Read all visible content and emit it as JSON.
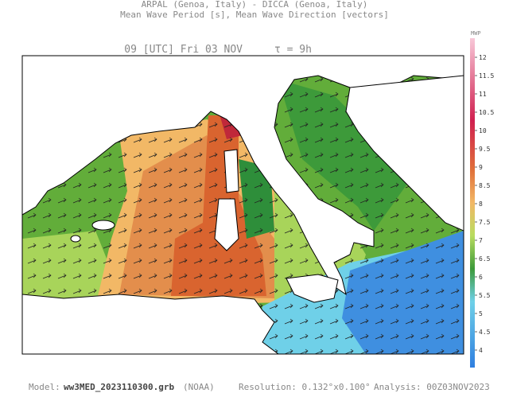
{
  "header": {
    "line1": "ARPAL (Genoa, Italy)  -  DICCA (Genoa, Italy)",
    "line2": "Mean Wave Period [s], Mean Wave Direction [vectors]"
  },
  "map": {
    "time": "09 [UTC] Fri 03 NOV",
    "tau": "τ = 9h"
  },
  "colorbar": {
    "label": "MWP",
    "ticks": [
      12,
      11.5,
      11,
      10.5,
      10,
      9.5,
      9,
      8.5,
      8,
      7.5,
      7,
      6.5,
      6,
      5.5,
      5,
      4.5,
      4
    ]
  },
  "footer": {
    "model_label": "Model:",
    "model_file": "ww3MED_2023110300.grb",
    "model_source": "(NOAA)",
    "resolution": "Resolution: 0.132°x0.100°",
    "analysis": "Analysis: 00Z03NOV2023"
  }
}
